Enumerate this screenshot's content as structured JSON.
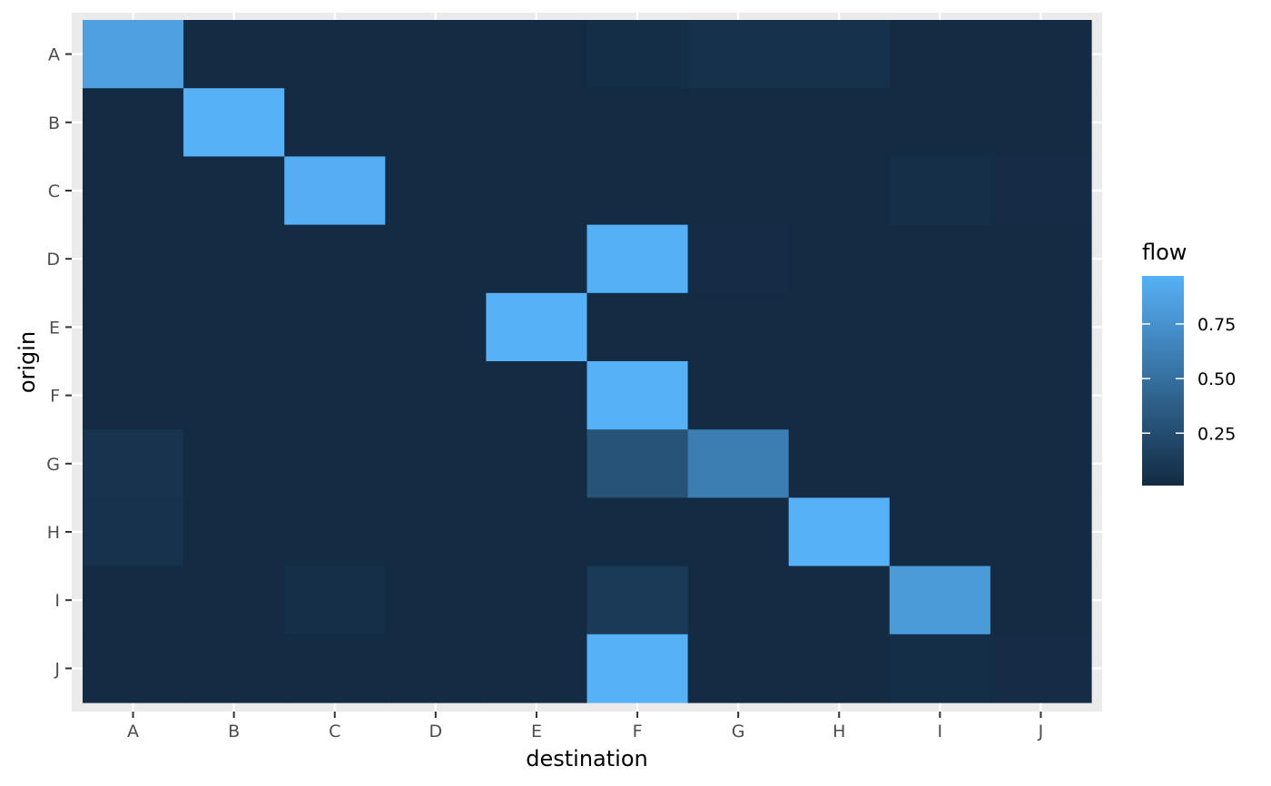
{
  "chart_data": {
    "type": "heatmap",
    "xlabel": "destination",
    "ylabel": "origin",
    "x_categories": [
      "A",
      "B",
      "C",
      "D",
      "E",
      "F",
      "G",
      "H",
      "I",
      "J"
    ],
    "y_categories": [
      "A",
      "B",
      "C",
      "D",
      "E",
      "F",
      "G",
      "H",
      "I",
      "J"
    ],
    "values": [
      [
        0.85,
        0.01,
        0.01,
        0.01,
        0.01,
        0.03,
        0.05,
        0.05,
        0.01,
        0.01
      ],
      [
        0.01,
        0.97,
        0.01,
        0.01,
        0.01,
        0.01,
        0.01,
        0.01,
        0.01,
        0.01
      ],
      [
        0.01,
        0.01,
        0.95,
        0.01,
        0.01,
        0.01,
        0.01,
        0.01,
        0.04,
        0.02
      ],
      [
        0.01,
        0.01,
        0.01,
        0.01,
        0.01,
        0.96,
        0.02,
        0.01,
        0.01,
        0.01
      ],
      [
        0.01,
        0.01,
        0.01,
        0.01,
        0.97,
        0.01,
        0.01,
        0.01,
        0.01,
        0.01
      ],
      [
        0.01,
        0.01,
        0.01,
        0.01,
        0.01,
        0.97,
        0.01,
        0.01,
        0.01,
        0.01
      ],
      [
        0.07,
        0.01,
        0.01,
        0.01,
        0.01,
        0.3,
        0.6,
        0.01,
        0.01,
        0.01
      ],
      [
        0.06,
        0.01,
        0.01,
        0.01,
        0.01,
        0.01,
        0.01,
        0.97,
        0.01,
        0.01
      ],
      [
        0.01,
        0.01,
        0.04,
        0.01,
        0.01,
        0.12,
        0.01,
        0.01,
        0.81,
        0.01
      ],
      [
        0.01,
        0.01,
        0.01,
        0.01,
        0.01,
        0.97,
        0.01,
        0.01,
        0.03,
        0.02
      ]
    ],
    "legend": {
      "title": "flow",
      "ticks": [
        0.25,
        0.5,
        0.75
      ],
      "tick_labels": [
        "0.25",
        "0.50",
        "0.75"
      ],
      "range": [
        0.01,
        0.97
      ],
      "placement": "right"
    },
    "colors": {
      "low": "#132B43",
      "high": "#56B1F7",
      "panel_background": "#EBEBEB",
      "grid": "#FFFFFF",
      "tick_mark": "#333333"
    },
    "grid": true
  }
}
